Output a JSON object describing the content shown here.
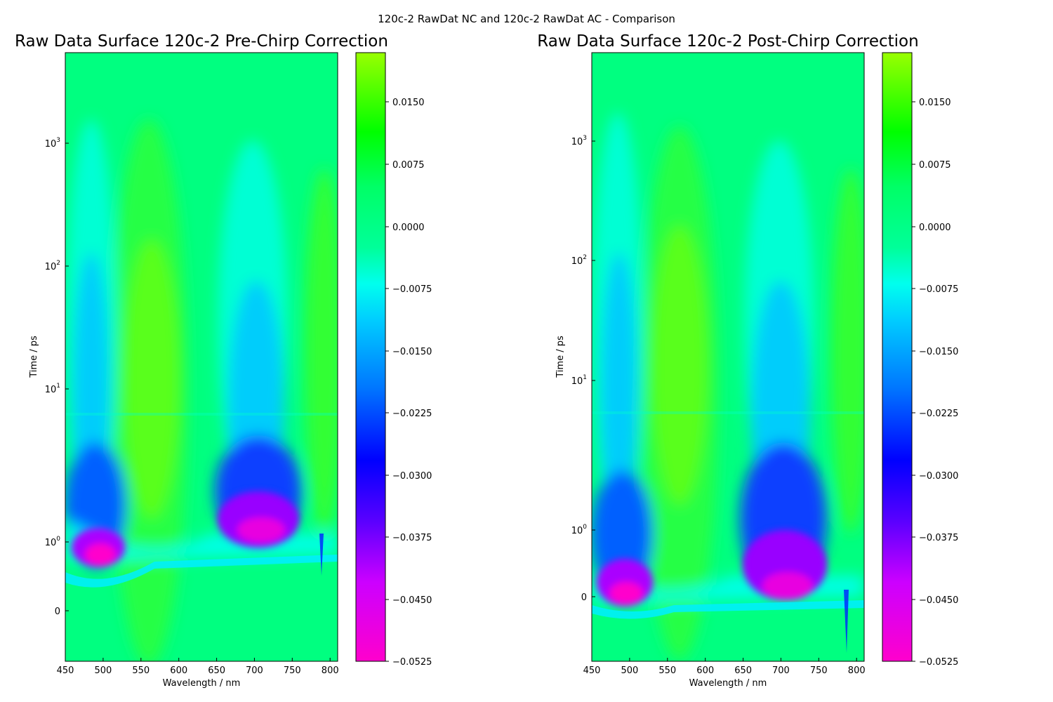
{
  "figure": {
    "suptitle": "120c-2 RawDat NC and 120c-2 RawDat AC - Comparison"
  },
  "chart_data": [
    {
      "type": "heatmap",
      "title": "Raw Data Surface 120c-2 Pre-Chirp Correction",
      "xlabel": "Wavelength / nm",
      "ylabel": "Time / ps",
      "xlim": [
        450,
        810
      ],
      "x_ticks": [
        450,
        500,
        550,
        600,
        650,
        700,
        750,
        800
      ],
      "x_tick_labels": [
        "450",
        "500",
        "550",
        "600",
        "650",
        "700",
        "750",
        "800"
      ],
      "y_scale": "symlog",
      "y_ticks": [
        0,
        1,
        10,
        100,
        1000
      ],
      "y_tick_labels": [
        {
          "base": "0",
          "exp": ""
        },
        {
          "base": "10",
          "exp": "0"
        },
        {
          "base": "10",
          "exp": "1"
        },
        {
          "base": "10",
          "exp": "2"
        },
        {
          "base": "10",
          "exp": "3"
        }
      ],
      "colormap": "gist_rainbow",
      "colorbar": {
        "range": [
          -0.0525,
          0.0225
        ],
        "ticks": [
          0.015,
          0.0075,
          0.0,
          -0.0075,
          -0.015,
          -0.0225,
          -0.03,
          -0.0375,
          -0.045,
          -0.0525
        ],
        "tick_labels": [
          "0.0150",
          "0.0075",
          "0.0000",
          "−0.0075",
          "−0.0150",
          "−0.0225",
          "−0.0300",
          "−0.0375",
          "−0.0450",
          "−0.0525"
        ]
      },
      "features": {
        "bleach_bands_nm": [
          490,
          710
        ],
        "absorption_bands_nm": [
          565,
          800
        ],
        "chirp": true
      }
    },
    {
      "type": "heatmap",
      "title": "Raw Data Surface 120c-2 Post-Chirp Correction",
      "xlabel": "Wavelength / nm",
      "ylabel": "Time / ps",
      "xlim": [
        450,
        810
      ],
      "x_ticks": [
        450,
        500,
        550,
        600,
        650,
        700,
        750,
        800
      ],
      "x_tick_labels": [
        "450",
        "500",
        "550",
        "600",
        "650",
        "700",
        "750",
        "800"
      ],
      "y_scale": "symlog",
      "y_ticks": [
        0,
        1,
        10,
        100,
        1000
      ],
      "y_tick_labels": [
        {
          "base": "0",
          "exp": ""
        },
        {
          "base": "10",
          "exp": "0"
        },
        {
          "base": "10",
          "exp": "1"
        },
        {
          "base": "10",
          "exp": "2"
        },
        {
          "base": "10",
          "exp": "3"
        }
      ],
      "colormap": "gist_rainbow",
      "colorbar": {
        "range": [
          -0.0525,
          0.0225
        ],
        "ticks": [
          0.015,
          0.0075,
          0.0,
          -0.0075,
          -0.015,
          -0.0225,
          -0.03,
          -0.0375,
          -0.045,
          -0.0525
        ],
        "tick_labels": [
          "0.0150",
          "0.0075",
          "0.0000",
          "−0.0075",
          "−0.0150",
          "−0.0225",
          "−0.0300",
          "−0.0375",
          "−0.0450",
          "−0.0525"
        ]
      },
      "features": {
        "bleach_bands_nm": [
          495,
          715
        ],
        "absorption_bands_nm": [
          570,
          800
        ],
        "chirp": false
      }
    }
  ]
}
